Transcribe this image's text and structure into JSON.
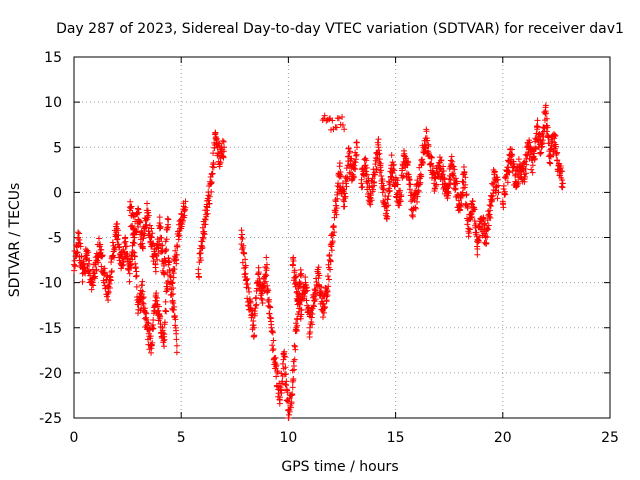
{
  "chart_data": {
    "type": "scatter",
    "title": "Day 287 of 2023, Sidereal Day-to-day VTEC variation (SDTVAR) for receiver dav1",
    "xlabel": "GPS time / hours",
    "ylabel": "SDTVAR / TECUs",
    "xlim": [
      0,
      25
    ],
    "ylim": [
      -25,
      15
    ],
    "x_ticks": [
      0,
      5,
      10,
      15,
      20,
      25
    ],
    "y_ticks": [
      -25,
      -20,
      -15,
      -10,
      -5,
      0,
      5,
      10,
      15
    ],
    "grid": true,
    "marker": "plus",
    "color": "#ff0000",
    "series": [
      {
        "name": "dav1",
        "segments": [
          {
            "x": [
              0.0,
              0.2,
              0.4,
              0.6,
              0.8,
              1.0,
              1.2,
              1.4,
              1.6,
              1.8,
              2.0,
              2.2,
              2.4,
              2.6,
              2.8,
              3.0,
              3.2,
              3.4,
              3.6,
              3.8,
              4.0,
              4.2,
              4.4,
              4.6,
              4.8
            ],
            "y": [
              -8,
              -5,
              -9,
              -7,
              -10,
              -8,
              -6,
              -9,
              -11,
              -7,
              -4,
              -8,
              -6,
              -9,
              -5,
              -13,
              -11,
              -15,
              -17,
              -12,
              -14,
              -16,
              -8,
              -12,
              -17
            ]
          },
          {
            "x": [
              2.6,
              2.8,
              3.0,
              3.2,
              3.4,
              3.6,
              3.8,
              4.0,
              4.2,
              4.4
            ],
            "y": [
              -2,
              -4,
              -3,
              -6,
              -2,
              -5,
              -8,
              -4,
              -9,
              -3
            ]
          },
          {
            "x": [
              4.6,
              4.8,
              5.0,
              5.2
            ],
            "y": [
              -10,
              -6,
              -3,
              -1
            ]
          },
          {
            "x": [
              5.8,
              6.0,
              6.2,
              6.4,
              6.6,
              6.8,
              7.0
            ],
            "y": [
              -9,
              -5,
              -2,
              1,
              6,
              4,
              5
            ]
          },
          {
            "x": [
              7.8,
              8.0,
              8.2,
              8.4,
              8.6,
              8.8,
              9.0
            ],
            "y": [
              -5,
              -9,
              -13,
              -15,
              -9,
              -11,
              -8
            ]
          },
          {
            "x": [
              9.0,
              9.2,
              9.4,
              9.6,
              9.8,
              10.0,
              10.2,
              10.4,
              10.6
            ],
            "y": [
              -11,
              -15,
              -19,
              -23,
              -18,
              -25,
              -21,
              -14,
              -9
            ]
          },
          {
            "x": [
              10.2,
              10.4,
              10.6,
              10.8,
              11.0,
              11.2,
              11.4,
              11.6,
              11.8,
              12.0,
              12.2,
              12.4,
              12.6,
              12.8,
              13.0,
              13.2
            ],
            "y": [
              -8,
              -11,
              -13,
              -10,
              -15,
              -12,
              -9,
              -13,
              -11,
              -6,
              -2,
              2,
              -1,
              4,
              2,
              5
            ]
          },
          {
            "x": [
              11.6,
              12.6
            ],
            "y": [
              8,
              7
            ]
          },
          {
            "x": [
              13.4,
              13.6,
              13.8,
              14.0,
              14.2,
              14.4,
              14.6,
              14.8,
              15.0,
              15.2,
              15.4,
              15.6,
              15.8,
              16.0,
              16.2,
              16.4,
              16.6,
              16.8,
              17.0,
              17.2,
              17.4,
              17.6,
              17.8,
              18.0,
              18.2,
              18.4,
              18.6,
              18.8,
              19.0,
              19.2,
              19.4,
              19.6,
              19.8
            ],
            "y": [
              1,
              3,
              -1,
              2,
              5,
              0,
              -2,
              3,
              1,
              -1,
              4,
              2,
              -2,
              0,
              3,
              6,
              4,
              1,
              3,
              2,
              0,
              3,
              1,
              -2,
              2,
              -4,
              -1,
              -6,
              -3,
              -5,
              -2,
              2,
              0
            ]
          },
          {
            "x": [
              20.0,
              20.2,
              20.4,
              20.6,
              20.8,
              21.0,
              21.2,
              21.4,
              21.6,
              21.8,
              22.0,
              22.2,
              22.4,
              22.6,
              22.8
            ],
            "y": [
              -1,
              2,
              4,
              1,
              3,
              2,
              5,
              3,
              7,
              5,
              9,
              4,
              6,
              3,
              1
            ]
          }
        ]
      }
    ]
  }
}
